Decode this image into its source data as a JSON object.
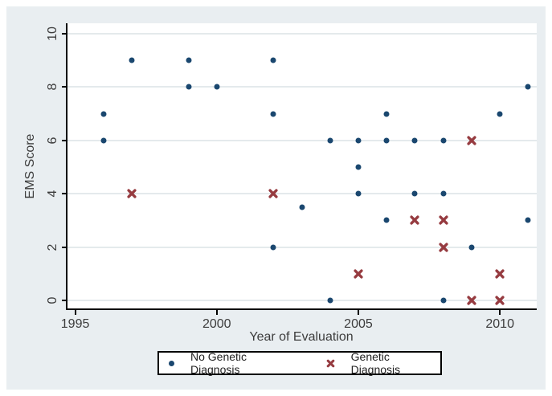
{
  "colors": {
    "canvas_background": "#e9eef1",
    "plot_background": "#ffffff",
    "gridline": "#e4eaec",
    "axis": "#000000",
    "navy": "#1a476f",
    "maroon": "#963b40"
  },
  "chart_data": {
    "type": "scatter",
    "title": "",
    "xlabel": "Year of Evaluation",
    "ylabel": "EMS Score",
    "xlim": [
      1994.7,
      2011.3
    ],
    "ylim": [
      -0.33,
      10.39
    ],
    "xticks": [
      1995,
      2000,
      2005,
      2010
    ],
    "yticks": [
      0,
      2,
      4,
      6,
      8,
      10
    ],
    "grid": "horizontal-only",
    "legend_position": "bottom-center-boxed",
    "series": [
      {
        "name": "No Genetic Diagnosis",
        "marker": "dot",
        "color": "#1a476f",
        "points": [
          [
            1996,
            7
          ],
          [
            1996,
            6
          ],
          [
            1997,
            9
          ],
          [
            1999,
            9
          ],
          [
            1999,
            8
          ],
          [
            2000,
            8
          ],
          [
            2002,
            9
          ],
          [
            2002,
            7
          ],
          [
            2002,
            2
          ],
          [
            2003,
            3.5
          ],
          [
            2004,
            6
          ],
          [
            2004,
            0
          ],
          [
            2005,
            6
          ],
          [
            2005,
            5
          ],
          [
            2005,
            4
          ],
          [
            2006,
            7
          ],
          [
            2006,
            6
          ],
          [
            2006,
            3
          ],
          [
            2007,
            6
          ],
          [
            2007,
            4
          ],
          [
            2008,
            6
          ],
          [
            2008,
            4
          ],
          [
            2008,
            0
          ],
          [
            2009,
            2
          ],
          [
            2010,
            7
          ],
          [
            2011,
            8
          ],
          [
            2011,
            3
          ]
        ]
      },
      {
        "name": "Genetic Diagnosis",
        "marker": "x",
        "color": "#963b40",
        "points": [
          [
            1997,
            4
          ],
          [
            2002,
            4
          ],
          [
            2005,
            1
          ],
          [
            2007,
            3
          ],
          [
            2008,
            3
          ],
          [
            2008,
            2
          ],
          [
            2009,
            6
          ],
          [
            2009,
            0
          ],
          [
            2010,
            1
          ],
          [
            2010,
            0
          ]
        ]
      }
    ]
  }
}
